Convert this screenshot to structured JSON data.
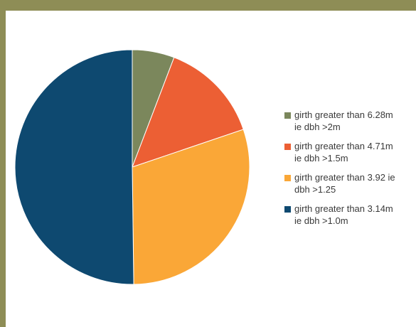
{
  "chart_data": {
    "type": "pie",
    "title": "",
    "start_angle_deg": 90,
    "direction": "clockwise",
    "slices": [
      {
        "label": "girth greater than 6.28m ie dbh >2m",
        "value": 5.8,
        "color": "#7b875c"
      },
      {
        "label": "girth greater than 4.71m ie dbh >1.5m",
        "value": 14.0,
        "color": "#ec5f34"
      },
      {
        "label": "girth greater than 3.92 ie dbh >1.25",
        "value": 30.0,
        "color": "#faa737"
      },
      {
        "label": "girth greater than 3.14m ie dbh >1.0m",
        "value": 50.2,
        "color": "#0e4970"
      }
    ],
    "legend": {
      "placement": "right",
      "entries": [
        {
          "line1": "girth greater than 6.28m",
          "line2": "ie dbh >2m",
          "color": "#7b875c"
        },
        {
          "line1": "girth greater than 4.71m",
          "line2": "ie dbh >1.5m",
          "color": "#ec5f34"
        },
        {
          "line1": "girth greater than 3.92 ie",
          "line2": "dbh >1.25",
          "color": "#faa737"
        },
        {
          "line1": "girth greater than 3.14m",
          "line2": "ie dbh >1.0m",
          "color": "#0e4970"
        }
      ]
    }
  },
  "colors": {
    "frame": "#8e8d56",
    "background": "#ffffff"
  }
}
